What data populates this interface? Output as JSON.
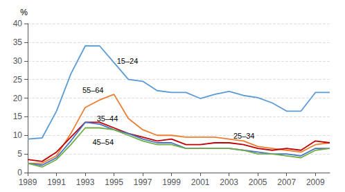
{
  "chart_data": {
    "type": "line",
    "y_label": "%",
    "x": [
      1989,
      1990,
      1991,
      1992,
      1993,
      1994,
      1995,
      1996,
      1997,
      1998,
      1999,
      2000,
      2001,
      2002,
      2003,
      2004,
      2005,
      2006,
      2007,
      2008,
      2009,
      2010
    ],
    "series": [
      {
        "name": "15–24",
        "color": "#5b9bd5",
        "values": [
          9.0,
          9.3,
          16.5,
          26.5,
          34.0,
          34.0,
          29.5,
          25.0,
          24.5,
          22.0,
          21.5,
          21.5,
          19.9,
          21.0,
          21.8,
          20.7,
          20.1,
          18.7,
          16.5,
          16.5,
          21.5,
          21.5
        ]
      },
      {
        "name": "55–64",
        "color": "#ed7d31",
        "values": [
          2.5,
          2.5,
          4.5,
          10.5,
          17.5,
          19.5,
          21.0,
          14.5,
          11.5,
          10.0,
          10.0,
          9.5,
          9.5,
          9.5,
          9.0,
          8.5,
          7.0,
          6.5,
          6.0,
          5.5,
          7.5,
          8.0
        ]
      },
      {
        "name": "25–34",
        "color": "#c00000",
        "values": [
          3.5,
          3.0,
          5.5,
          9.5,
          13.5,
          13.5,
          12.0,
          10.5,
          9.5,
          8.5,
          9.0,
          7.5,
          7.5,
          8.0,
          8.0,
          7.5,
          6.5,
          6.0,
          6.5,
          6.0,
          8.5,
          8.0
        ]
      },
      {
        "name": "35–44",
        "color": "#4472c4",
        "values": [
          2.5,
          2.0,
          4.0,
          8.5,
          13.5,
          13.0,
          11.5,
          10.5,
          9.0,
          8.0,
          8.0,
          6.5,
          6.5,
          6.5,
          6.5,
          6.0,
          5.5,
          5.0,
          5.0,
          4.5,
          6.5,
          6.5
        ]
      },
      {
        "name": "45–54",
        "color": "#70ad47",
        "values": [
          2.5,
          1.5,
          3.5,
          7.5,
          12.0,
          12.0,
          11.5,
          10.0,
          8.5,
          7.5,
          7.5,
          6.5,
          6.5,
          6.5,
          6.5,
          6.0,
          5.0,
          5.0,
          4.5,
          4.0,
          6.0,
          6.5
        ]
      }
    ],
    "annotations": [
      {
        "text": "15–24",
        "x": 1995.2,
        "y": 30.0
      },
      {
        "text": "55–64",
        "x": 1992.8,
        "y": 22.2
      },
      {
        "text": "25–34",
        "x": 2003.3,
        "y": 9.8
      },
      {
        "text": "35–44",
        "x": 1993.8,
        "y": 14.6
      },
      {
        "text": "45–54",
        "x": 1993.5,
        "y": 8.2
      }
    ],
    "xlim": [
      1989,
      2010
    ],
    "xticks": [
      1989,
      1991,
      1993,
      1995,
      1997,
      1999,
      2001,
      2003,
      2005,
      2007,
      2009
    ],
    "ylim": [
      0,
      40
    ],
    "yticks": [
      0,
      5,
      10,
      15,
      20,
      25,
      30,
      35,
      40
    ],
    "grid": true
  }
}
